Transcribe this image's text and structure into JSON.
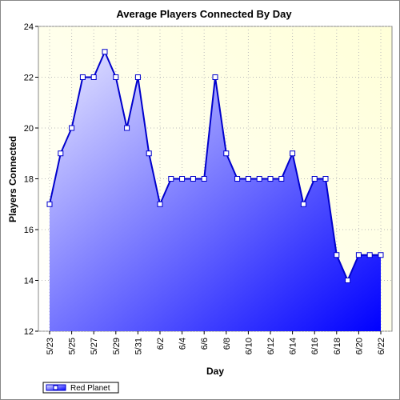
{
  "chart_data": {
    "type": "area",
    "title": "Average Players Connected By Day",
    "x_label": "Day",
    "y_label": "Players Connected",
    "categories": [
      "5/23",
      null,
      "5/25",
      null,
      "5/27",
      null,
      "5/29",
      null,
      "5/31",
      null,
      "6/2",
      null,
      "6/4",
      null,
      "6/6",
      null,
      "6/8",
      null,
      "6/10",
      null,
      "6/12",
      null,
      "6/14",
      null,
      "6/16",
      null,
      "6/18",
      null,
      "6/20",
      null,
      "6/22"
    ],
    "series": [
      {
        "name": "Red Planet",
        "color": "#0000cc",
        "values": [
          17,
          19,
          20,
          22,
          22,
          23,
          22,
          20,
          22,
          19,
          17,
          18,
          18,
          18,
          18,
          22,
          19,
          18,
          18,
          18,
          18,
          18,
          19,
          17,
          18,
          18,
          15,
          14,
          15,
          15,
          15
        ]
      }
    ],
    "ylim": [
      12,
      24
    ],
    "yticks": [
      12,
      14,
      16,
      18,
      20,
      22,
      24
    ],
    "grid": true,
    "legend": "bottom-left"
  }
}
